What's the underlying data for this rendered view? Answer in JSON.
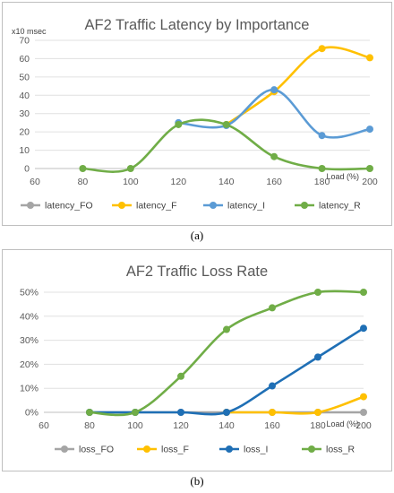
{
  "panels": {
    "a_label": "(a)",
    "b_label": "(b)"
  },
  "chart_data": [
    {
      "type": "line",
      "title": "AF2 Traffic Latency by Importance",
      "ylabel": "x10 msec",
      "xlabel": "Load (%)",
      "x_ticks": [
        60,
        80,
        100,
        120,
        140,
        160,
        180,
        200
      ],
      "y_ticks": [
        0,
        10,
        20,
        30,
        40,
        50,
        60,
        70
      ],
      "y_tick_labels": [
        "0",
        "10",
        "20",
        "30",
        "40",
        "50",
        "60",
        "70"
      ],
      "xlim": [
        60,
        200
      ],
      "ylim": [
        0,
        70
      ],
      "legend_position": "bottom",
      "grid": "horizontal",
      "series": [
        {
          "name": "latency_FO",
          "color": "#a5a5a5",
          "x": [],
          "y": []
        },
        {
          "name": "latency_F",
          "color": "#ffc000",
          "x": [
            140,
            160,
            180,
            200
          ],
          "y": [
            24,
            42,
            65.5,
            60.5
          ]
        },
        {
          "name": "latency_I",
          "color": "#5b9bd5",
          "x": [
            120,
            140,
            160,
            180,
            200
          ],
          "y": [
            25,
            23.5,
            43,
            18,
            21.5
          ]
        },
        {
          "name": "latency_R",
          "color": "#70ad47",
          "x": [
            80,
            100,
            120,
            140,
            160,
            180,
            200
          ],
          "y": [
            0,
            0,
            24,
            24,
            6.5,
            0,
            0
          ]
        }
      ]
    },
    {
      "type": "line",
      "title": "AF2 Traffic Loss Rate",
      "ylabel": "",
      "xlabel": "Load (%)",
      "x_ticks": [
        60,
        80,
        100,
        120,
        140,
        160,
        180,
        200
      ],
      "y_ticks": [
        0,
        10,
        20,
        30,
        40,
        50
      ],
      "y_tick_labels": [
        "0%",
        "10%",
        "20%",
        "30%",
        "40%",
        "50%"
      ],
      "xlim": [
        60,
        200
      ],
      "ylim": [
        0,
        50
      ],
      "legend_position": "bottom",
      "grid": "horizontal",
      "series": [
        {
          "name": "loss_FO",
          "color": "#a5a5a5",
          "x": [
            80,
            100,
            120,
            140,
            160,
            180,
            200
          ],
          "y": [
            0,
            0,
            0,
            0,
            0,
            0,
            0
          ]
        },
        {
          "name": "loss_F",
          "color": "#ffc000",
          "x": [
            140,
            160,
            180,
            200
          ],
          "y": [
            0,
            0,
            0,
            6.5
          ]
        },
        {
          "name": "loss_I",
          "color": "#1f6fb5",
          "x": [
            80,
            100,
            120,
            140,
            160,
            180,
            200
          ],
          "y": [
            0,
            0,
            0,
            0,
            11,
            23,
            35
          ]
        },
        {
          "name": "loss_R",
          "color": "#70ad47",
          "x": [
            80,
            100,
            120,
            140,
            160,
            180,
            200
          ],
          "y": [
            0,
            0,
            15,
            34.5,
            43.5,
            50,
            50
          ]
        }
      ]
    }
  ]
}
